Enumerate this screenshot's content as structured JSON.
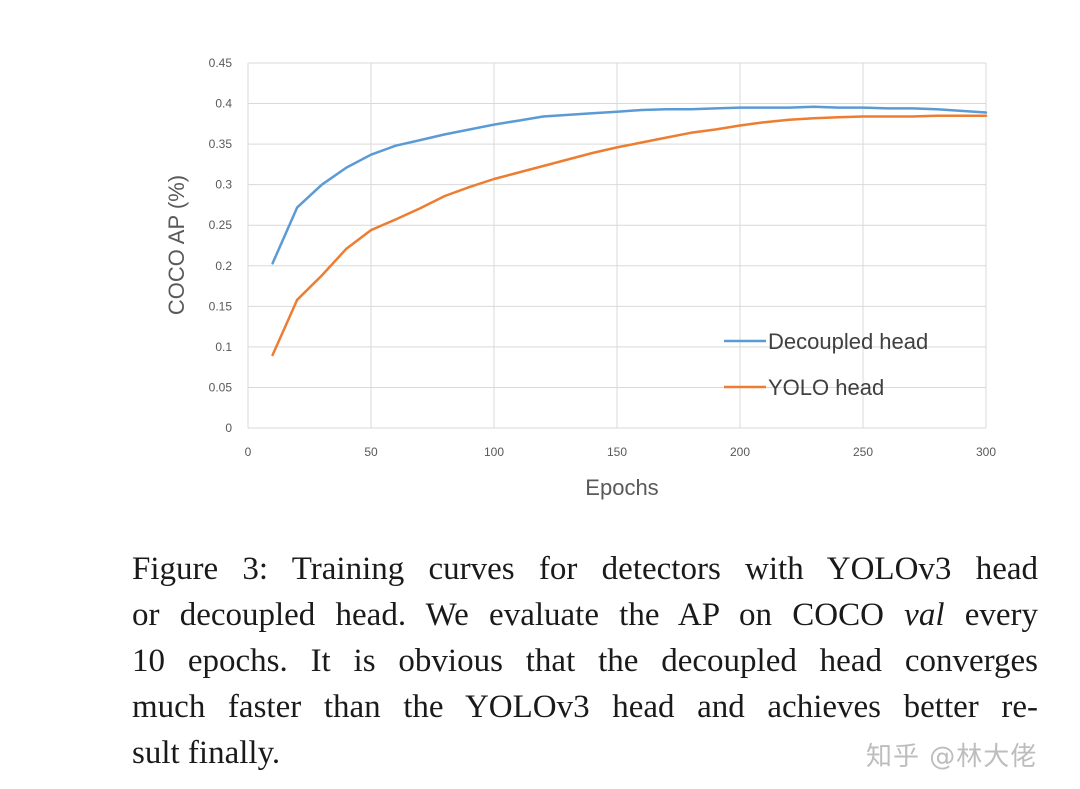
{
  "chart_data": {
    "type": "line",
    "title": "",
    "xlabel": "Epochs",
    "ylabel": "COCO AP (%)",
    "xlim": [
      0,
      300
    ],
    "ylim": [
      0,
      0.45
    ],
    "x_ticks": [
      0,
      50,
      100,
      150,
      200,
      250,
      300
    ],
    "x_tick_labels": [
      "0",
      "50",
      "100",
      "150",
      "200",
      "250",
      "300"
    ],
    "y_ticks": [
      0,
      0.05,
      0.1,
      0.15,
      0.2,
      0.25,
      0.3,
      0.35,
      0.4,
      0.45
    ],
    "y_tick_labels": [
      "0",
      "0.05",
      "0.1",
      "0.15",
      "0.2",
      "0.25",
      "0.3",
      "0.35",
      "0.4",
      "0.45"
    ],
    "grid": true,
    "legend_position": "bottom-right",
    "x": [
      10,
      20,
      30,
      40,
      50,
      60,
      70,
      80,
      90,
      100,
      110,
      120,
      130,
      140,
      150,
      160,
      170,
      180,
      190,
      200,
      210,
      220,
      230,
      240,
      250,
      260,
      270,
      280,
      290,
      300
    ],
    "series": [
      {
        "name": "Decoupled head",
        "color": "#5b9bd5",
        "values": [
          0.203,
          0.272,
          0.3,
          0.321,
          0.337,
          0.348,
          0.355,
          0.362,
          0.368,
          0.374,
          0.379,
          0.384,
          0.386,
          0.388,
          0.39,
          0.392,
          0.393,
          0.393,
          0.394,
          0.395,
          0.395,
          0.395,
          0.396,
          0.395,
          0.395,
          0.394,
          0.394,
          0.393,
          0.391,
          0.389
        ]
      },
      {
        "name": "YOLO head",
        "color": "#ed7d31",
        "values": [
          0.09,
          0.158,
          0.188,
          0.221,
          0.244,
          0.257,
          0.271,
          0.286,
          0.297,
          0.307,
          0.315,
          0.323,
          0.331,
          0.339,
          0.346,
          0.352,
          0.358,
          0.364,
          0.368,
          0.373,
          0.377,
          0.38,
          0.382,
          0.383,
          0.384,
          0.384,
          0.384,
          0.385,
          0.385,
          0.385
        ]
      }
    ]
  },
  "caption": {
    "line1": "Figure 3: Training curves for detectors with YOLOv3 head",
    "line2_before": "or decoupled head. We evaluate the AP on COCO ",
    "line2_italic": "val",
    "line2_after": " every",
    "line3": "10 epochs. It is obvious that the decoupled head converges",
    "line4": "much faster than the YOLOv3 head and achieves better re-",
    "line5": "sult finally."
  },
  "watermark": "知乎 @林大佬"
}
